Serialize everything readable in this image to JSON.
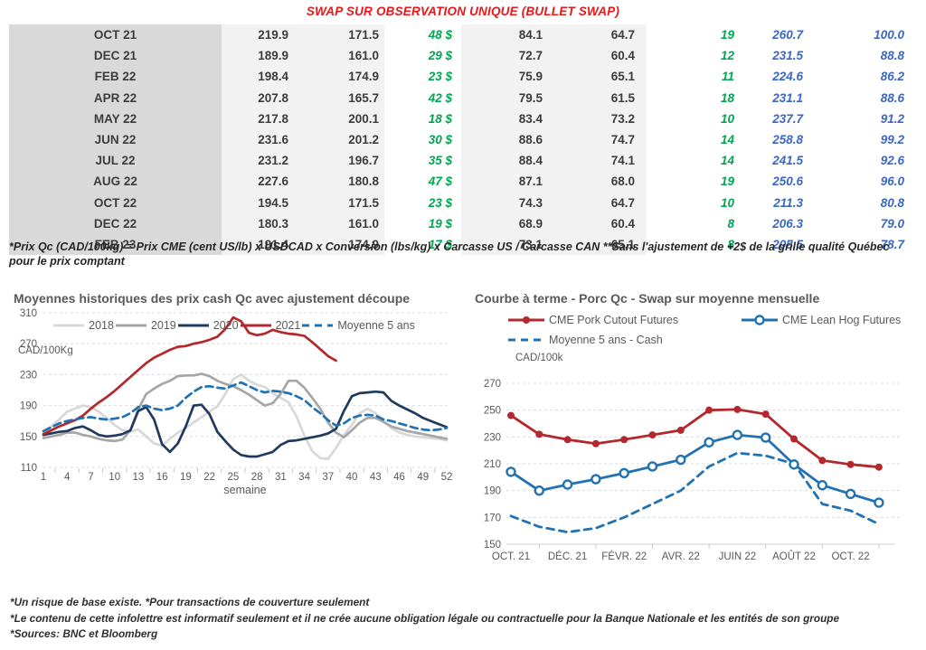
{
  "title": "SWAP SUR OBSERVATION UNIQUE (BULLET SWAP)",
  "colors": {
    "green": "#00a651",
    "blue": "#3a66c4",
    "title_red": "#ee1417",
    "axis_text": "#595959"
  },
  "table": {
    "rows": [
      [
        "OCT 21",
        "219.9",
        "171.5",
        "48 $",
        "84.1",
        "64.7",
        "19",
        "260.7",
        "100.0"
      ],
      [
        "DEC 21",
        "189.9",
        "161.0",
        "29 $",
        "72.7",
        "60.4",
        "12",
        "231.5",
        "88.8"
      ],
      [
        "FEB 22",
        "198.4",
        "174.9",
        "23 $",
        "75.9",
        "65.1",
        "11",
        "224.6",
        "86.2"
      ],
      [
        "APR 22",
        "207.8",
        "165.7",
        "42 $",
        "79.5",
        "61.5",
        "18",
        "231.1",
        "88.6"
      ],
      [
        "MAY 22",
        "217.8",
        "200.1",
        "18 $",
        "83.4",
        "73.2",
        "10",
        "237.7",
        "91.2"
      ],
      [
        "JUN 22",
        "231.6",
        "201.2",
        "30 $",
        "88.6",
        "74.7",
        "14",
        "258.8",
        "99.2"
      ],
      [
        "JUL 22",
        "231.2",
        "196.7",
        "35 $",
        "88.4",
        "74.1",
        "14",
        "241.5",
        "92.6"
      ],
      [
        "AUG 22",
        "227.6",
        "180.8",
        "47 $",
        "87.1",
        "68.0",
        "19",
        "250.6",
        "96.0"
      ],
      [
        "OCT 22",
        "194.5",
        "171.5",
        "23 $",
        "74.3",
        "64.7",
        "10",
        "211.3",
        "80.8"
      ],
      [
        "DEC 22",
        "180.3",
        "161.0",
        "19 $",
        "68.9",
        "60.4",
        "8",
        "206.3",
        "79.0"
      ],
      [
        "FEB 23",
        "191.4",
        "174.9",
        "17 $",
        "73.1",
        "65.1",
        "8",
        "205.5",
        "78.7"
      ]
    ]
  },
  "table_note": "*Prix Qc (CAD/100kg) = Prix CME (cent US/lb) x USDCAD x Conversion (lbs/kg) x Carcasse US / Carcasse CAN **Sans l'ajustement de +2$ de la grille qualité Québec pour le prix comptant",
  "footer": [
    "*Un risque de base existe.  *Pour transactions de couverture seulement",
    "*Le contenu de cette infolettre est informatif seulement et il ne crée aucune obligation légale ou contractuelle pour la Banque Nationale et les entités de son groupe",
    "*Sources: BNC et Bloomberg"
  ],
  "chart_data": [
    {
      "type": "line",
      "title": "Moyennes historiques des prix cash Qc avec ajustement découpe",
      "ylabel": "CAD/100Kg",
      "xlabel": "semaine",
      "ylim": [
        110,
        310
      ],
      "yticks": [
        110,
        150,
        190,
        230,
        270,
        310
      ],
      "x_ticks": [
        1,
        4,
        7,
        10,
        13,
        16,
        19,
        22,
        25,
        28,
        31,
        34,
        37,
        40,
        43,
        46,
        49,
        52
      ],
      "x_range": [
        1,
        52
      ],
      "grid": "dashed-horizontal",
      "legend_position": "top-center",
      "series": [
        {
          "name": "2018",
          "color": "#d8d8d8",
          "style": "solid",
          "values": [
            155,
            163,
            172,
            182,
            186,
            190,
            188,
            182,
            174,
            165,
            158,
            156,
            159,
            150,
            141,
            138,
            147,
            155,
            161,
            168,
            175,
            182,
            189,
            205,
            224,
            230,
            222,
            217,
            214,
            206,
            200,
            194,
            176,
            151,
            131,
            122,
            121,
            135,
            152,
            165,
            180,
            186,
            180,
            170,
            161,
            155,
            152,
            150,
            149,
            148,
            147,
            145
          ]
        },
        {
          "name": "2019",
          "color": "#a6a6a6",
          "style": "solid",
          "values": [
            148,
            150,
            152,
            155,
            155,
            152,
            150,
            147,
            145,
            144,
            146,
            158,
            185,
            205,
            212,
            218,
            222,
            228,
            229,
            229,
            231,
            228,
            222,
            218,
            215,
            210,
            204,
            197,
            190,
            193,
            205,
            222,
            222,
            213,
            200,
            186,
            168,
            155,
            149,
            158,
            168,
            174,
            174,
            169,
            163,
            160,
            157,
            155,
            153,
            151,
            149,
            147
          ]
        },
        {
          "name": "2020",
          "color": "#1f3a5c",
          "style": "solid",
          "values": [
            152,
            154,
            156,
            157,
            161,
            163,
            158,
            152,
            150,
            151,
            153,
            158,
            183,
            188,
            172,
            140,
            130,
            141,
            163,
            190,
            191,
            179,
            156,
            144,
            133,
            126,
            124,
            124,
            127,
            130,
            139,
            144,
            145,
            147,
            149,
            151,
            154,
            160,
            183,
            202,
            206,
            207,
            208,
            207,
            196,
            190,
            185,
            180,
            174,
            170,
            166,
            162
          ]
        },
        {
          "name": "2021",
          "color": "#b2282d",
          "style": "solid",
          "values": [
            153,
            158,
            163,
            167,
            171,
            177,
            186,
            194,
            201,
            209,
            218,
            227,
            236,
            245,
            252,
            257,
            262,
            266,
            267,
            270,
            272,
            275,
            279,
            289,
            304,
            299,
            284,
            281,
            283,
            288,
            285,
            283,
            282,
            280,
            272,
            263,
            254,
            248
          ]
        },
        {
          "name": "Moyenne 5 ans",
          "color": "#2272b2",
          "style": "dashed",
          "values": [
            157,
            162,
            167,
            170,
            172,
            174,
            175,
            173,
            172,
            173,
            175,
            180,
            188,
            190,
            186,
            184,
            186,
            190,
            200,
            208,
            214,
            215,
            213,
            212,
            216,
            220,
            215,
            210,
            207,
            209,
            208,
            206,
            202,
            197,
            188,
            180,
            171,
            164,
            167,
            174,
            177,
            178,
            177,
            172,
            170,
            167,
            164,
            161,
            159,
            158,
            159,
            161
          ]
        }
      ]
    },
    {
      "type": "line",
      "title": "Courbe à terme - Porc Qc - Swap sur moyenne mensuelle",
      "ylabel": "CAD/100k",
      "ylim": [
        150,
        270
      ],
      "yticks": [
        150,
        170,
        190,
        210,
        230,
        250,
        270
      ],
      "x_labels": [
        "OCT. 21",
        "",
        "DÉC. 21",
        "",
        "FÉVR. 22",
        "",
        "AVR. 22",
        "",
        "JUIN 22",
        "",
        "AOÛT 22",
        "",
        "OCT. 22",
        ""
      ],
      "grid": "dashed-horizontal",
      "legend_position": "top-left",
      "series": [
        {
          "name": "CME Pork Cutout Futures",
          "color": "#b2282d",
          "style": "solid",
          "marker": "filled",
          "values": [
            246,
            232,
            228,
            225,
            228,
            231.5,
            235,
            250,
            250.5,
            247,
            228.5,
            212.5,
            209.5,
            207.5
          ]
        },
        {
          "name": "CME Lean Hog Futures",
          "color": "#2272b2",
          "style": "solid",
          "marker": "open",
          "values": [
            204,
            190,
            194.5,
            198.5,
            203,
            208,
            213,
            226,
            231.5,
            229.5,
            209.5,
            194,
            187.5,
            181
          ]
        },
        {
          "name": "Moyenne 5 ans - Cash",
          "color": "#2272b2",
          "style": "dashed",
          "values": [
            171,
            163,
            159,
            162,
            170,
            180,
            190,
            208,
            218,
            216,
            210,
            180,
            175,
            165
          ]
        }
      ]
    }
  ]
}
